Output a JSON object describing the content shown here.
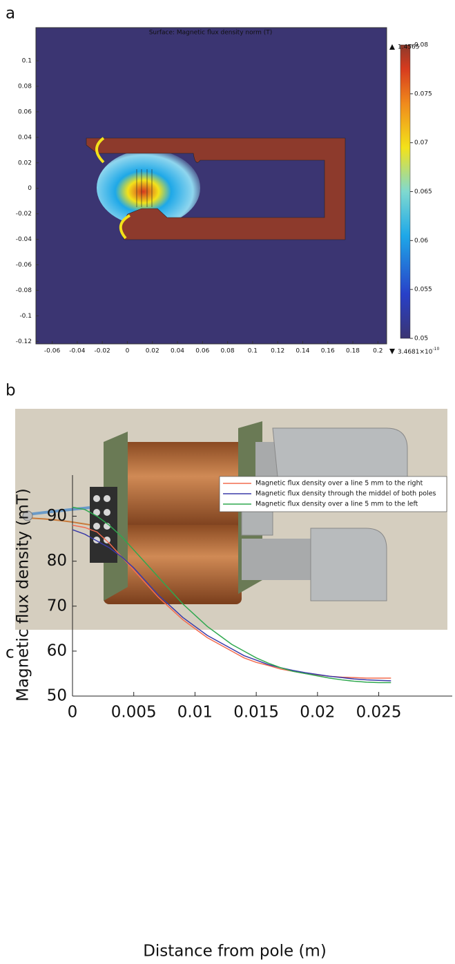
{
  "panel_labels": [
    "a",
    "b",
    "c"
  ],
  "chart_data": [
    {
      "type": "surface",
      "title": "Surface: Magnetic flux density norm (T)",
      "xlim": [
        -0.073,
        0.207
      ],
      "xticks": [
        -0.06,
        -0.04,
        -0.02,
        0,
        0.02,
        0.04,
        0.06,
        0.08,
        0.1,
        0.12,
        0.14,
        0.16,
        0.18,
        0.2
      ],
      "ylim": [
        -0.122,
        0.126
      ],
      "yticks": [
        0.1,
        0.08,
        0.06,
        0.04,
        0.02,
        0,
        -0.02,
        -0.04,
        -0.06,
        -0.08,
        -0.1,
        -0.12
      ],
      "colorbar_lim": [
        0.05,
        0.08
      ],
      "colorbar_ticks": [
        0.08,
        0.075,
        0.07,
        0.065,
        0.06,
        0.055,
        0.05
      ],
      "max_label": "1.4565",
      "min_label": {
        "mantissa": "3.4681×10",
        "exponent": "-10"
      }
    },
    {
      "type": "line",
      "xlabel": "Distance from pole (m)",
      "ylabel": "Magnetic flux density (mT)",
      "xlim": [
        0,
        0.031
      ],
      "xticks": [
        0,
        0.005,
        0.01,
        0.015,
        0.02,
        0.025
      ],
      "ylim": [
        50,
        95
      ],
      "yticks": [
        50,
        60,
        70,
        80,
        90
      ],
      "x": [
        0,
        0.001,
        0.002,
        0.003,
        0.004,
        0.005,
        0.006,
        0.007,
        0.008,
        0.009,
        0.01,
        0.011,
        0.012,
        0.013,
        0.014,
        0.015,
        0.016,
        0.017,
        0.018,
        0.019,
        0.02,
        0.021,
        0.022,
        0.023,
        0.024,
        0.025,
        0.026
      ],
      "series": [
        {
          "name": "Magnetic flux density over a line 5 mm to the right",
          "color": "#f26b4f",
          "values": [
            88,
            87.5,
            86.5,
            84,
            81,
            78,
            75,
            72,
            69.5,
            67,
            65,
            63,
            61.5,
            60,
            58.5,
            57.5,
            56.8,
            56,
            55.5,
            55,
            54.7,
            54.4,
            54.2,
            54.1,
            54,
            54,
            54
          ]
        },
        {
          "name": "Magnetic flux density through the middel of both poles",
          "color": "#3a3aa8",
          "values": [
            87,
            86,
            84.5,
            83,
            81,
            78.5,
            75.5,
            72.5,
            70,
            67.5,
            65.5,
            63.5,
            62,
            60.5,
            59,
            58,
            57,
            56.3,
            55.7,
            55.2,
            54.8,
            54.4,
            54.1,
            53.8,
            53.6,
            53.5,
            53.4
          ]
        },
        {
          "name": "Magnetic flux density over a line 5 mm to the left",
          "color": "#2fa84f",
          "values": [
            92,
            91.5,
            90,
            88,
            85.5,
            82.5,
            79.5,
            76.5,
            73.5,
            70.5,
            68,
            65.5,
            63.5,
            61.5,
            60,
            58.5,
            57.3,
            56.3,
            55.5,
            55,
            54.5,
            54,
            53.6,
            53.3,
            53.1,
            53,
            53
          ]
        }
      ]
    }
  ]
}
